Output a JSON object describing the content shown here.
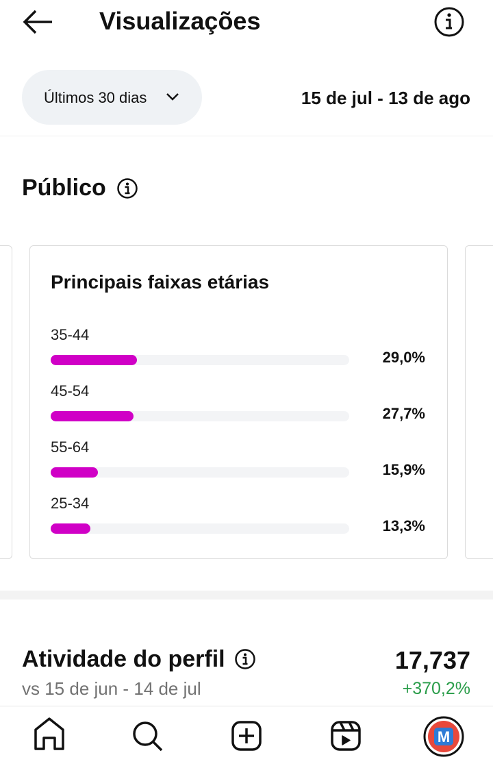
{
  "header": {
    "title": "Visualizações"
  },
  "filter": {
    "period": "Últimos 30 dias",
    "date_range": "15 de jul - 13 de ago"
  },
  "audience": {
    "title": "Público",
    "age_card": {
      "title": "Principais faixas etárias",
      "items": [
        {
          "label": "35-44",
          "value": 29.0,
          "value_label": "29,0%"
        },
        {
          "label": "45-54",
          "value": 27.7,
          "value_label": "27,7%"
        },
        {
          "label": "55-64",
          "value": 15.9,
          "value_label": "15,9%"
        },
        {
          "label": "25-34",
          "value": 13.3,
          "value_label": "13,3%"
        }
      ]
    }
  },
  "profile_activity": {
    "title": "Atividade do perfil",
    "comparison": "vs 15 de jun - 14 de jul",
    "total": "17,737",
    "change": "+370,2%"
  }
}
